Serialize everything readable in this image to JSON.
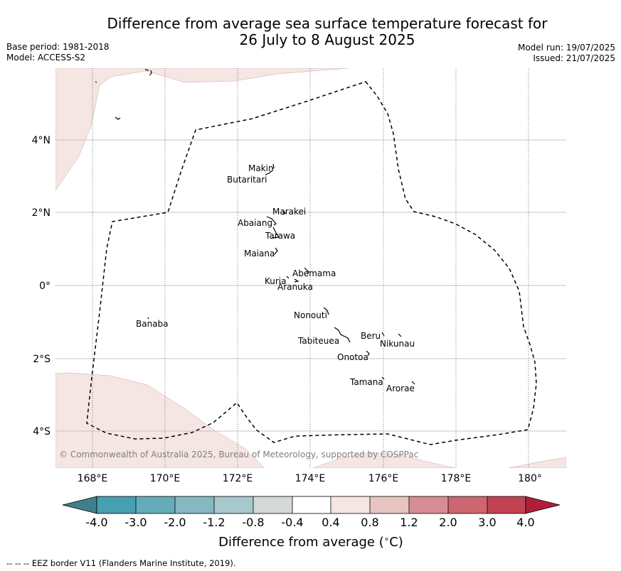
{
  "header": {
    "title_line1": "Difference from average sea surface temperature forecast for",
    "title_line2": "26 July to 8 August 2025",
    "base_period": "Base period: 1981-2018",
    "model": "Model: ACCESS-S2",
    "model_run": "Model run: 19/07/2025",
    "issued": "Issued: 21/07/2025"
  },
  "map": {
    "lon_ticks": [
      "168°E",
      "170°E",
      "172°E",
      "174°E",
      "176°E",
      "178°E",
      "180°"
    ],
    "lat_ticks": [
      "4°N",
      "2°N",
      "0°",
      "2°S",
      "4°S"
    ],
    "credit": "© Commonwealth of Australia 2025, Bureau of Meteorology, supported by COSPPac",
    "places": [
      "Makin",
      "Butaritari",
      "Marakei",
      "Abaiang",
      "Tarawa",
      "Maiana",
      "Abemama",
      "Kuria",
      "Aranuka",
      "Banaba",
      "Nonouti",
      "Tabiteuea",
      "Beru",
      "Nikunau",
      "Onotoa",
      "Tamana",
      "Arorae"
    ]
  },
  "colorbar": {
    "title": "Difference from average (",
    "title_unit": "∘",
    "title_end": "C)",
    "labels": [
      "-4.0",
      "-3.0",
      "-2.0",
      "-1.2",
      "-0.8",
      "-0.4",
      "0.4",
      "0.8",
      "1.2",
      "2.0",
      "3.0",
      "4.0"
    ],
    "colors": [
      "#3f7f8c",
      "#46a0b1",
      "#64acb9",
      "#86b8c2",
      "#a7c8cc",
      "#d3d9d9",
      "#ffffff",
      "#f5e6e4",
      "#e8c4c1",
      "#d88d94",
      "#cd6670",
      "#c24252",
      "#b01e3c"
    ]
  },
  "footer": {
    "legend": "--  --  -- EEZ border V11 (Flanders Marine Institute, 2019)."
  }
}
